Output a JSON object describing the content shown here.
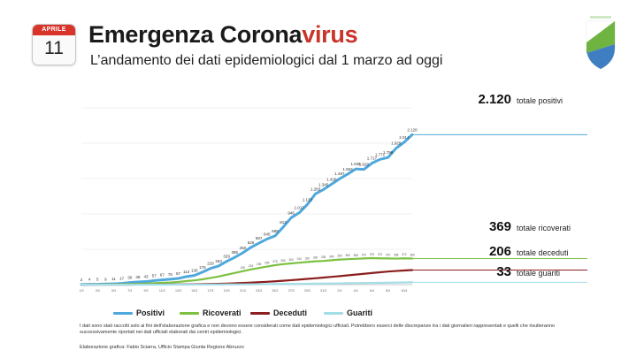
{
  "header": {
    "calendar_month": "APRILE",
    "calendar_day": "11",
    "title_main": "Emergenza Corona",
    "title_accent": "virus",
    "subtitle": "L’andamento dei dati epidemiologici dal 1 marzo ad oggi"
  },
  "colors": {
    "positivi": "#4fa8dc",
    "ricoverati": "#7cc142",
    "deceduti": "#8b1e1e",
    "guariti": "#a3dde6",
    "title_accent": "#c8352b"
  },
  "legend": [
    "Positivi",
    "Ricoverati",
    "Deceduti",
    "Guariti"
  ],
  "totals": [
    {
      "series": "Positivi",
      "value": "2.120",
      "label": "totale positivi"
    },
    {
      "series": "Ricoverati",
      "value": "369",
      "label": "totale ricoverati"
    },
    {
      "series": "Deceduti",
      "value": "206",
      "label": "totale deceduti"
    },
    {
      "series": "Guariti",
      "value": "33",
      "label": "totale guariti"
    }
  ],
  "notes": "I dati sono stati raccolti solo ai fini dell’elaborazione grafica e non devono essere considerati come dati epidemiologici ufficiali. Potrebbero esserci delle discrepanze tra i dati giornalieri rappresentati e quelli che risulteranno successivamente riportati nei dati ufficiali elaborati dai centri epidemiologici.",
  "credit": "Elaborazione grafica: Fabio Sciarra, Ufficio Stampa Giunta Regione Abruzzo",
  "chart_data": {
    "type": "line",
    "xlabel": "",
    "ylabel": "",
    "ylim": [
      0,
      2500
    ],
    "grid": true,
    "legend_position": "bottom",
    "x": [
      "1/3",
      "2/3",
      "3/3",
      "4/3",
      "5/3",
      "6/3",
      "7/3",
      "8/3",
      "9/3",
      "10/3",
      "11/3",
      "12/3",
      "13/3",
      "14/3",
      "15/3",
      "16/3",
      "17/3",
      "18/3",
      "19/3",
      "20/3",
      "21/3",
      "22/3",
      "23/3",
      "24/3",
      "25/3",
      "26/3",
      "27/3",
      "28/3",
      "29/3",
      "30/3",
      "31/3",
      "1/4",
      "2/4",
      "3/4",
      "4/4",
      "5/4",
      "6/4",
      "7/4",
      "8/4",
      "9/4",
      "10/4",
      "11/4"
    ],
    "series": [
      {
        "name": "Positivi",
        "values": [
          2,
          4,
          5,
          9,
          11,
          17,
          30,
          38,
          43,
          57,
          67,
          76,
          87,
          113,
          130,
          176,
          229,
          263,
          329,
          385,
          450,
          526,
          587,
          645,
          689,
          813,
          946,
          1017,
          1133,
          1283,
          1345,
          1420,
          1497,
          1563,
          1636,
          1629,
          1717,
          1771,
          1798,
          1929,
          2014,
          2120
        ]
      },
      {
        "name": "Ricoverati",
        "values": [
          1,
          2,
          3,
          4,
          5,
          7,
          10,
          12,
          15,
          20,
          25,
          30,
          38,
          50,
          60,
          75,
          95,
          115,
          140,
          165,
          190,
          215,
          235,
          255,
          275,
          290,
          300,
          310,
          320,
          330,
          335,
          345,
          355,
          360,
          365,
          370,
          375,
          372,
          370,
          368,
          372,
          369
        ]
      },
      {
        "name": "Deceduti",
        "values": [
          0,
          0,
          0,
          0,
          0,
          0,
          0,
          1,
          1,
          1,
          2,
          2,
          3,
          4,
          5,
          7,
          9,
          12,
          15,
          19,
          23,
          28,
          34,
          40,
          47,
          55,
          63,
          72,
          81,
          90,
          100,
          110,
          120,
          131,
          142,
          153,
          164,
          175,
          185,
          193,
          200,
          206
        ]
      },
      {
        "name": "Guariti",
        "values": [
          0,
          0,
          0,
          0,
          0,
          0,
          0,
          0,
          0,
          0,
          0,
          0,
          0,
          0,
          1,
          1,
          2,
          2,
          3,
          3,
          4,
          5,
          6,
          7,
          8,
          9,
          10,
          11,
          12,
          14,
          15,
          16,
          18,
          20,
          21,
          22,
          24,
          25,
          27,
          29,
          31,
          33
        ]
      }
    ]
  }
}
